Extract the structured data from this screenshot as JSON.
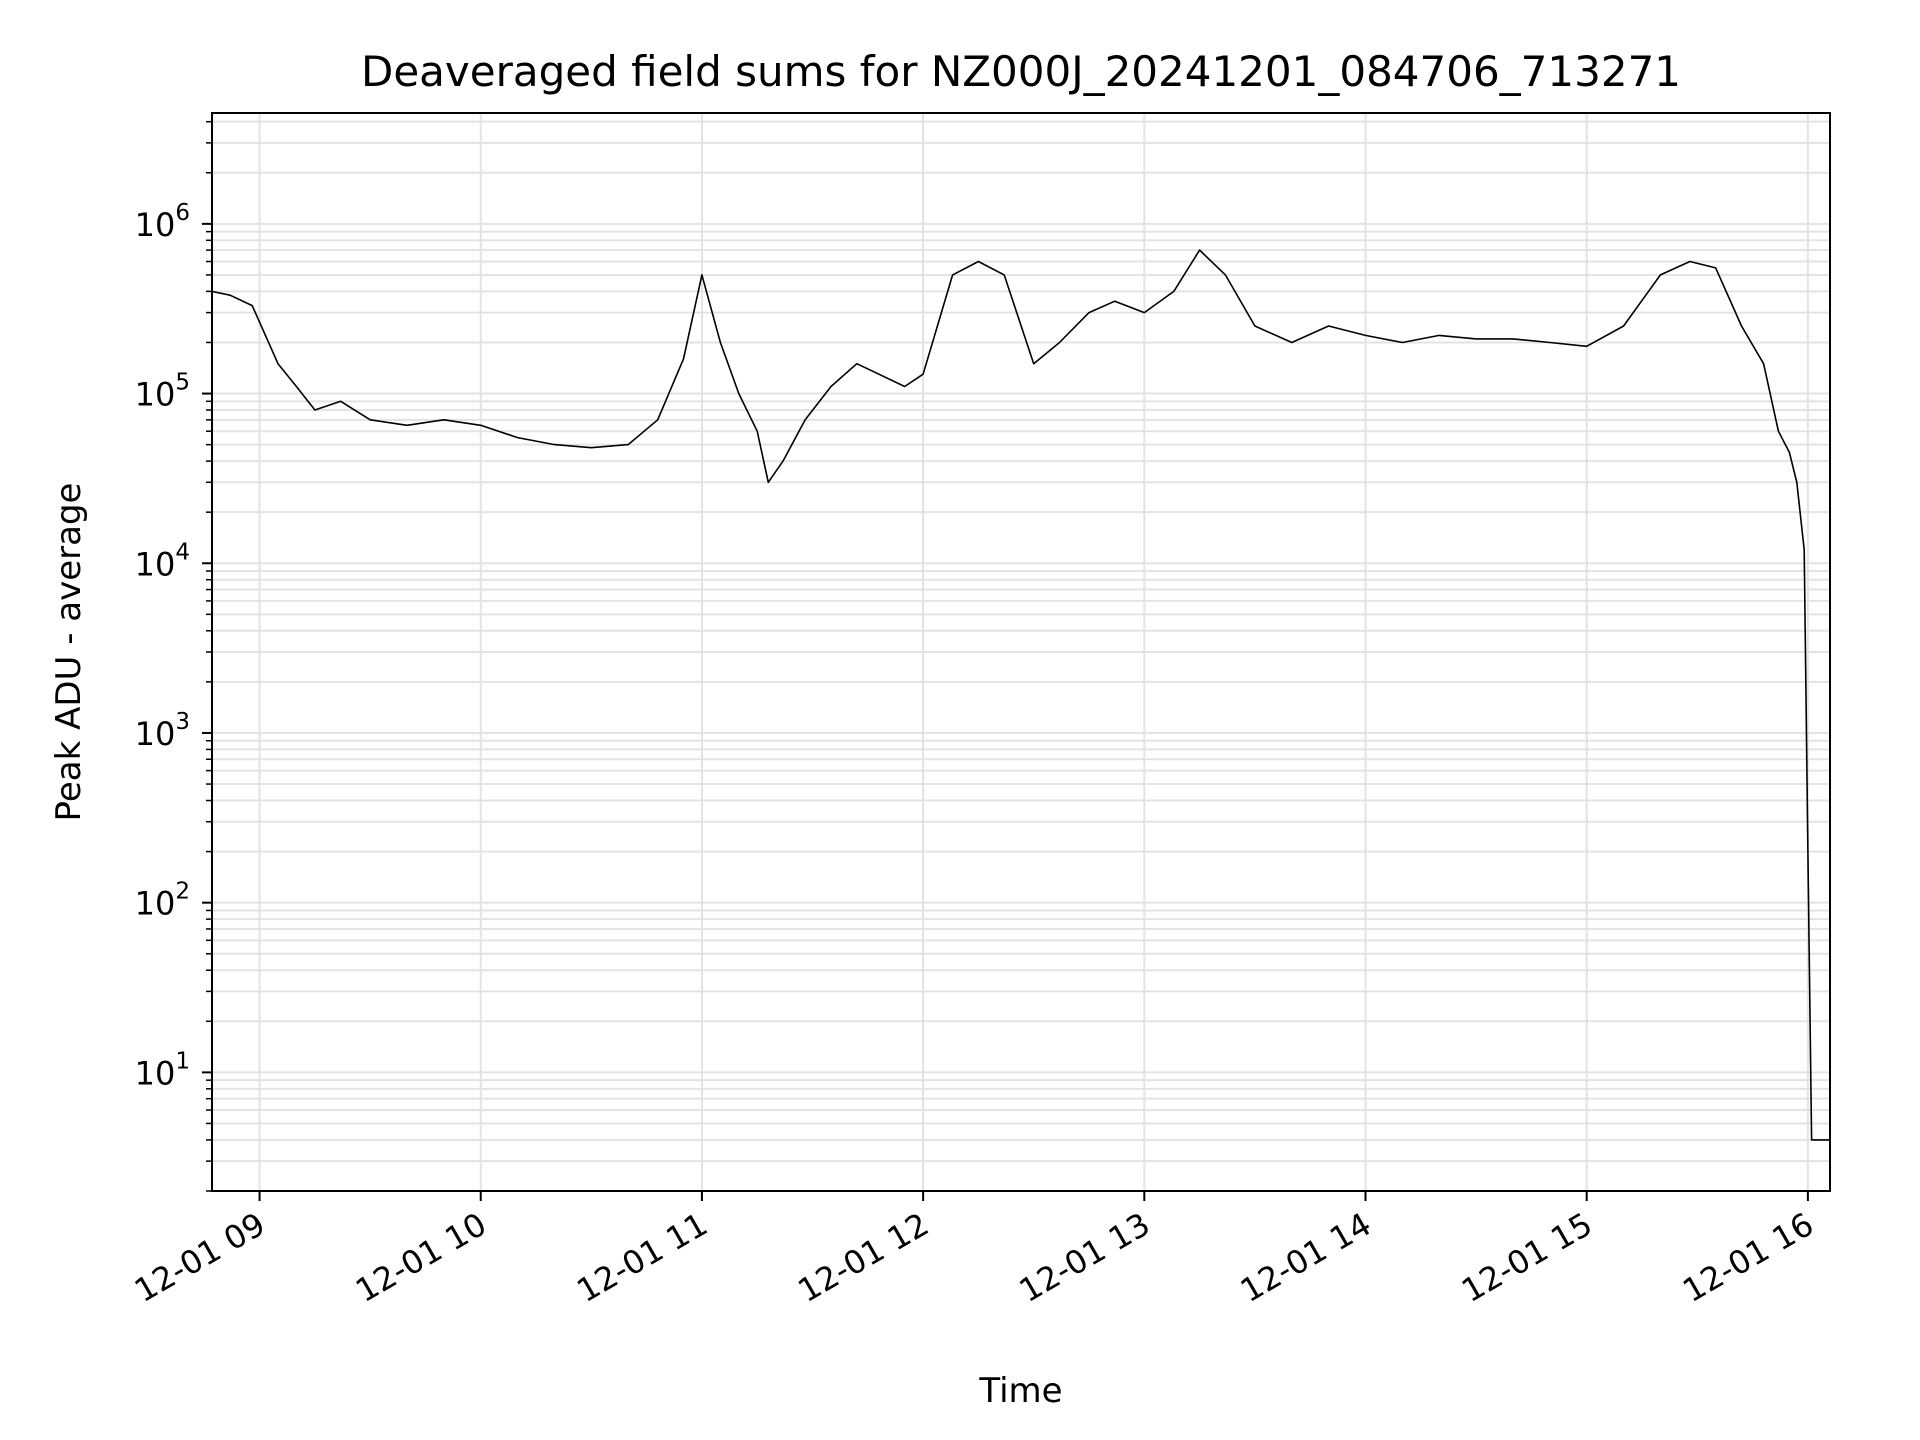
{
  "chart_data": {
    "type": "line",
    "title": "Deaveraged field sums for NZ000J_20241201_084706_713271",
    "xlabel": "Time",
    "ylabel": "Peak ADU - average",
    "yscale": "log",
    "ylim": [
      2,
      4500000.0
    ],
    "xlim": [
      "2024-12-01 08:47:06",
      "2024-12-01 16:06:00"
    ],
    "x_ticks": [
      "12-01 09",
      "12-01 10",
      "12-01 11",
      "12-01 12",
      "12-01 13",
      "12-01 14",
      "12-01 15",
      "12-01 16"
    ],
    "y_ticks": [
      {
        "mant": "10",
        "exp": "1",
        "value": 10
      },
      {
        "mant": "10",
        "exp": "2",
        "value": 100
      },
      {
        "mant": "10",
        "exp": "3",
        "value": 1000
      },
      {
        "mant": "10",
        "exp": "4",
        "value": 10000
      },
      {
        "mant": "10",
        "exp": "5",
        "value": 100000
      },
      {
        "mant": "10",
        "exp": "6",
        "value": 1000000
      }
    ],
    "grid": true,
    "line_color": "#000000",
    "series": [
      {
        "x": [
          "2024-12-01 08:47",
          "2024-12-01 08:52",
          "2024-12-01 08:58",
          "2024-12-01 09:05",
          "2024-12-01 09:10",
          "2024-12-01 09:15",
          "2024-12-01 09:22",
          "2024-12-01 09:30",
          "2024-12-01 09:40",
          "2024-12-01 09:50",
          "2024-12-01 10:00",
          "2024-12-01 10:10",
          "2024-12-01 10:20",
          "2024-12-01 10:30",
          "2024-12-01 10:40",
          "2024-12-01 10:48",
          "2024-12-01 10:55",
          "2024-12-01 11:00",
          "2024-12-01 11:05",
          "2024-12-01 11:10",
          "2024-12-01 11:15",
          "2024-12-01 11:18",
          "2024-12-01 11:22",
          "2024-12-01 11:28",
          "2024-12-01 11:35",
          "2024-12-01 11:42",
          "2024-12-01 11:48",
          "2024-12-01 11:55",
          "2024-12-01 12:00",
          "2024-12-01 12:08",
          "2024-12-01 12:15",
          "2024-12-01 12:22",
          "2024-12-01 12:30",
          "2024-12-01 12:37",
          "2024-12-01 12:45",
          "2024-12-01 12:52",
          "2024-12-01 13:00",
          "2024-12-01 13:08",
          "2024-12-01 13:15",
          "2024-12-01 13:22",
          "2024-12-01 13:30",
          "2024-12-01 13:40",
          "2024-12-01 13:50",
          "2024-12-01 14:00",
          "2024-12-01 14:10",
          "2024-12-01 14:20",
          "2024-12-01 14:30",
          "2024-12-01 14:40",
          "2024-12-01 14:50",
          "2024-12-01 15:00",
          "2024-12-01 15:10",
          "2024-12-01 15:20",
          "2024-12-01 15:28",
          "2024-12-01 15:35",
          "2024-12-01 15:42",
          "2024-12-01 15:48",
          "2024-12-01 15:52",
          "2024-12-01 15:55",
          "2024-12-01 15:57",
          "2024-12-01 15:59",
          "2024-12-01 16:00",
          "2024-12-01 16:01",
          "2024-12-01 16:06"
        ],
        "y": [
          400000,
          380000,
          330000,
          150000,
          110000,
          80000,
          90000,
          70000,
          65000,
          70000,
          65000,
          55000,
          50000,
          48000,
          50000,
          70000,
          160000,
          500000,
          200000,
          100000,
          60000,
          30000,
          40000,
          70000,
          110000,
          150000,
          130000,
          110000,
          130000,
          500000,
          600000,
          500000,
          150000,
          200000,
          300000,
          350000,
          300000,
          400000,
          700000,
          500000,
          250000,
          200000,
          250000,
          220000,
          200000,
          220000,
          210000,
          210000,
          200000,
          190000,
          250000,
          500000,
          600000,
          550000,
          250000,
          150000,
          60000,
          45000,
          30000,
          12000,
          200,
          4,
          4
        ]
      }
    ]
  }
}
